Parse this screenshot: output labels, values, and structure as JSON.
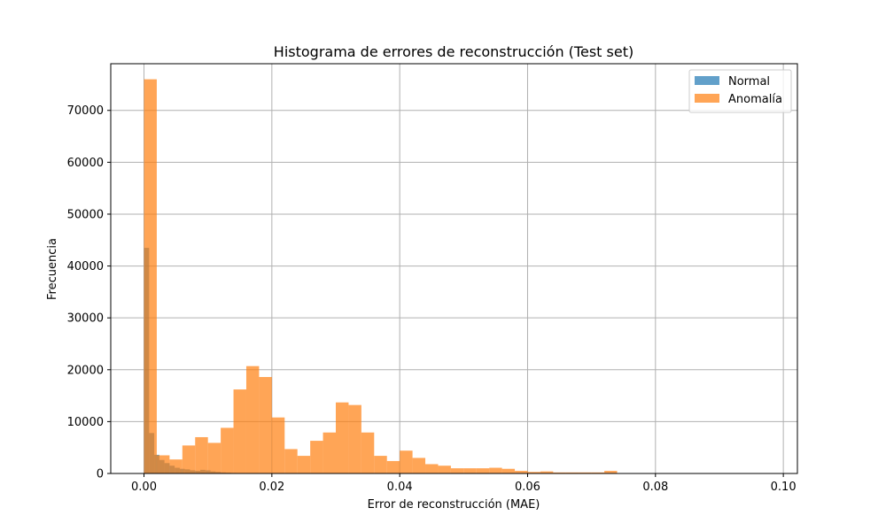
{
  "chart_data": {
    "type": "bar",
    "title": "Histograma de errores de reconstrucción (Test set)",
    "xlabel": "Error de reconstrucción (MAE)",
    "ylabel": "Frecuencia",
    "xlim": [
      -0.0052,
      0.1022
    ],
    "ylim": [
      0,
      79000
    ],
    "xticks": [
      0.0,
      0.02,
      0.04,
      0.06,
      0.08,
      0.1
    ],
    "xtick_labels": [
      "0.00",
      "0.02",
      "0.04",
      "0.06",
      "0.08",
      "0.10"
    ],
    "yticks": [
      0,
      10000,
      20000,
      30000,
      40000,
      50000,
      60000,
      70000
    ],
    "ytick_labels": [
      "0",
      "10000",
      "20000",
      "30000",
      "40000",
      "50000",
      "60000",
      "70000"
    ],
    "grid": true,
    "legend_position": "top-right",
    "series": [
      {
        "name": "Normal",
        "color": "#1f77b4",
        "opacity": 0.7,
        "bin_width": 0.0008,
        "bin_starts": [
          0.0,
          0.0008,
          0.0016,
          0.0024,
          0.0032,
          0.004,
          0.0048,
          0.0056,
          0.0064,
          0.0072,
          0.008,
          0.0088,
          0.0096,
          0.0104,
          0.0112,
          0.012,
          0.0128,
          0.0136,
          0.0144
        ],
        "values": [
          43500,
          7800,
          3600,
          2600,
          2000,
          1500,
          1100,
          900,
          800,
          600,
          500,
          700,
          600,
          400,
          300,
          200,
          150,
          100,
          50
        ]
      },
      {
        "name": "Anomalía",
        "color": "#ff7f0e",
        "opacity": 0.7,
        "bin_width": 0.002,
        "bin_starts": [
          0.0,
          0.002,
          0.004,
          0.006,
          0.008,
          0.01,
          0.012,
          0.014,
          0.016,
          0.018,
          0.02,
          0.022,
          0.024,
          0.026,
          0.028,
          0.03,
          0.032,
          0.034,
          0.036,
          0.038,
          0.04,
          0.042,
          0.044,
          0.046,
          0.048,
          0.05,
          0.052,
          0.054,
          0.056,
          0.058,
          0.06,
          0.062,
          0.064,
          0.066,
          0.068,
          0.07,
          0.072,
          0.074,
          0.076,
          0.078,
          0.08,
          0.082,
          0.084,
          0.086,
          0.088,
          0.09,
          0.092,
          0.094,
          0.096,
          0.098
        ],
        "values": [
          76000,
          3500,
          2700,
          5400,
          7000,
          5900,
          8800,
          16200,
          20700,
          18600,
          10800,
          4700,
          3400,
          6300,
          7900,
          13700,
          13200,
          7900,
          3400,
          2400,
          4400,
          3000,
          1800,
          1500,
          1000,
          1000,
          1000,
          1100,
          900,
          500,
          300,
          400,
          200,
          200,
          200,
          200,
          500,
          0,
          0,
          0,
          0,
          0,
          0,
          0,
          0,
          0,
          0,
          0,
          0,
          0
        ]
      }
    ]
  }
}
